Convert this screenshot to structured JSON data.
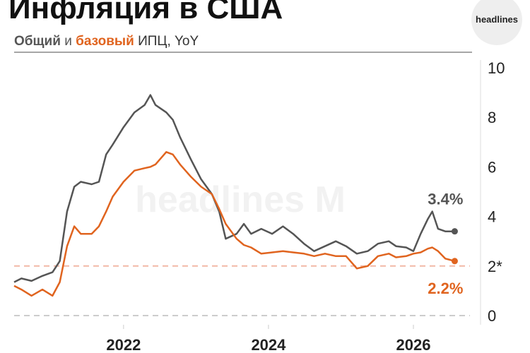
{
  "chart_data": {
    "type": "line",
    "title": "Инфляция в США",
    "subtitle_parts": [
      "и",
      "ИПЦ, YoY"
    ],
    "logo": "headlines",
    "watermark": "headlines M",
    "x": [
      2020.49,
      2020.59,
      2020.73,
      2020.88,
      2021.02,
      2021.12,
      2021.22,
      2021.32,
      2021.41,
      2021.56,
      2021.66,
      2021.76,
      2021.85,
      2022.0,
      2022.15,
      2022.29,
      2022.37,
      2022.44,
      2022.59,
      2022.68,
      2022.78,
      2022.93,
      2023.07,
      2023.22,
      2023.32,
      2023.41,
      2023.56,
      2023.66,
      2023.76,
      2023.9,
      2024.05,
      2024.2,
      2024.34,
      2024.49,
      2024.63,
      2024.78,
      2024.93,
      2025.07,
      2025.22,
      2025.37,
      2025.51,
      2025.66,
      2025.76,
      2025.9,
      2026.0,
      2026.1,
      2026.2,
      2026.26,
      2026.34,
      2026.44,
      2026.57
    ],
    "series": [
      {
        "name": "Общий",
        "color": "#555555",
        "values": [
          1.35,
          1.5,
          1.4,
          1.6,
          1.75,
          2.2,
          4.2,
          5.2,
          5.4,
          5.3,
          5.4,
          6.5,
          6.9,
          7.6,
          8.2,
          8.5,
          8.9,
          8.5,
          8.2,
          7.9,
          7.2,
          6.3,
          5.5,
          4.9,
          4.2,
          3.1,
          3.3,
          3.7,
          3.3,
          3.5,
          3.3,
          3.6,
          3.3,
          2.9,
          2.6,
          2.8,
          3.0,
          2.8,
          2.5,
          2.6,
          2.9,
          3.0,
          2.8,
          2.75,
          2.6,
          3.3,
          3.9,
          4.2,
          3.5,
          3.4,
          3.4
        ],
        "value_labels": [
          null,
          null,
          null,
          null,
          null,
          null,
          null,
          null,
          null,
          null,
          null,
          null,
          null,
          null,
          null,
          null,
          null,
          null,
          null,
          null,
          null,
          null,
          null,
          null,
          null,
          null,
          null,
          null,
          null,
          null,
          null,
          null,
          null,
          null,
          null,
          null,
          null,
          null,
          null,
          null,
          null,
          null,
          null,
          null,
          null,
          null,
          null,
          null,
          null,
          null,
          "3.4%"
        ]
      },
      {
        "name": "базовый",
        "color": "#e0641f",
        "values": [
          1.2,
          1.05,
          0.8,
          1.05,
          0.8,
          1.35,
          2.8,
          3.6,
          3.3,
          3.3,
          3.6,
          4.2,
          4.8,
          5.4,
          5.85,
          5.95,
          6.0,
          6.1,
          6.6,
          6.5,
          6.1,
          5.6,
          5.2,
          4.9,
          4.3,
          3.7,
          3.1,
          2.85,
          2.75,
          2.5,
          2.55,
          2.6,
          2.55,
          2.5,
          2.4,
          2.5,
          2.4,
          2.4,
          1.9,
          2.0,
          2.4,
          2.5,
          2.35,
          2.4,
          2.5,
          2.55,
          2.7,
          2.75,
          2.6,
          2.3,
          2.2
        ],
        "value_labels": [
          null,
          null,
          null,
          null,
          null,
          null,
          null,
          null,
          null,
          null,
          null,
          null,
          null,
          null,
          null,
          null,
          null,
          null,
          null,
          null,
          null,
          null,
          null,
          null,
          null,
          null,
          null,
          null,
          null,
          null,
          null,
          null,
          null,
          null,
          null,
          null,
          null,
          null,
          null,
          null,
          null,
          null,
          null,
          null,
          null,
          null,
          null,
          null,
          null,
          null,
          "2.2%"
        ]
      }
    ],
    "xlim": [
      2020.49,
      2026.78
    ],
    "xticks": [
      2022,
      2024,
      2026
    ],
    "ylim": [
      0,
      10
    ],
    "yticks": [
      0,
      {
        "value": 2,
        "label": "2*"
      },
      4,
      6,
      8,
      10
    ],
    "target": 2
  }
}
